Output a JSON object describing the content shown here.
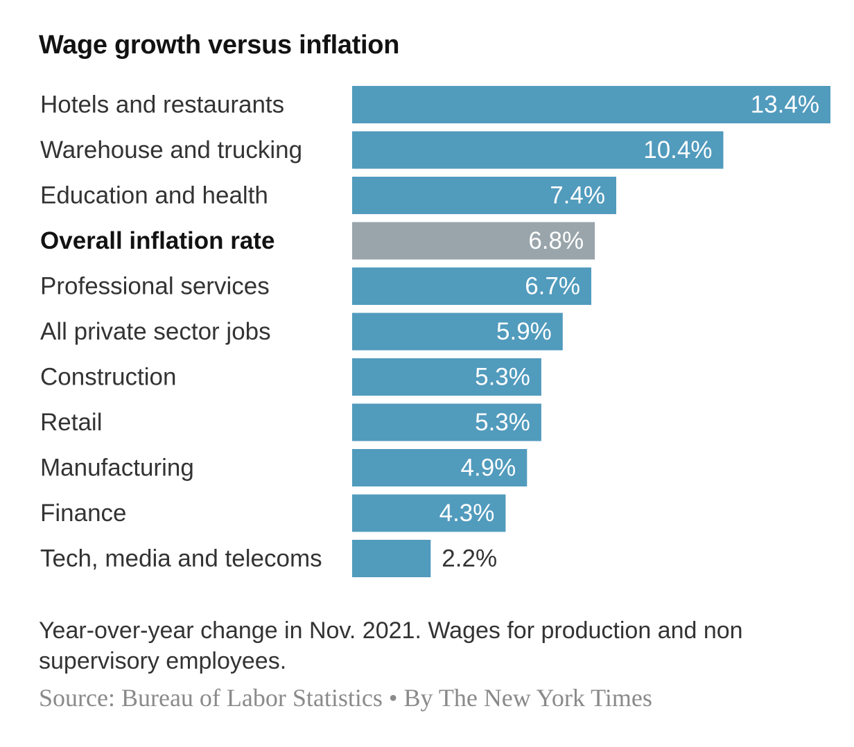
{
  "chart_data": {
    "type": "bar",
    "orientation": "horizontal",
    "title": "Wage growth versus inflation",
    "categories": [
      "Hotels and restaurants",
      "Warehouse and trucking",
      "Education and health",
      "Overall inflation rate",
      "Professional services",
      "All private sector jobs",
      "Construction",
      "Retail",
      "Manufacturing",
      "Finance",
      "Tech, media and telecoms"
    ],
    "values": [
      13.4,
      10.4,
      7.4,
      6.8,
      6.7,
      5.9,
      5.3,
      5.3,
      4.9,
      4.3,
      2.2
    ],
    "value_labels": [
      "13.4%",
      "10.4%",
      "7.4%",
      "6.8%",
      "6.7%",
      "5.9%",
      "5.3%",
      "5.3%",
      "4.9%",
      "4.3%",
      "2.2%"
    ],
    "highlight_category": "Overall inflation rate",
    "xlim": [
      0,
      13.4
    ],
    "colors": {
      "bar": "#519bbd",
      "highlight_bar": "#99a5ab",
      "inside_label": "#ffffff",
      "outside_label": "#333333"
    },
    "note": "Year-over-year change in Nov. 2021. Wages for production and non supervisory employees.",
    "source": "Source: Bureau of Labor Statistics • By The New York Times"
  }
}
